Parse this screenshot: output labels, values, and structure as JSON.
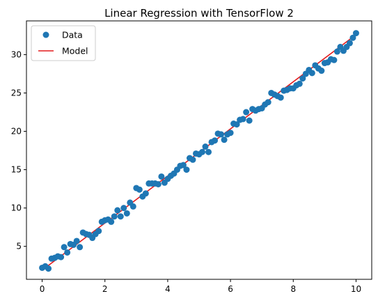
{
  "chart_data": {
    "type": "scatter",
    "title": "Linear Regression with TensorFlow 2",
    "xlabel": "",
    "ylabel": "",
    "xlim": [
      -0.5,
      10.5
    ],
    "ylim": [
      0.7,
      34.4
    ],
    "xticks": [
      0,
      2,
      4,
      6,
      8,
      10
    ],
    "xtick_labels": [
      "0",
      "2",
      "4",
      "6",
      "8",
      "10"
    ],
    "yticks": [
      5,
      10,
      15,
      20,
      25,
      30
    ],
    "ytick_labels": [
      "5",
      "10",
      "15",
      "20",
      "25",
      "30"
    ],
    "grid": false,
    "legend_position": "top-left",
    "series": [
      {
        "name": "Data",
        "kind": "scatter",
        "color": "#1f77b4",
        "x": [
          0.0,
          0.1,
          0.2,
          0.3,
          0.4,
          0.5,
          0.6,
          0.7,
          0.8,
          0.9,
          1.0,
          1.1,
          1.2,
          1.3,
          1.4,
          1.5,
          1.6,
          1.7,
          1.8,
          1.9,
          2.0,
          2.1,
          2.2,
          2.3,
          2.4,
          2.5,
          2.6,
          2.7,
          2.8,
          2.9,
          3.0,
          3.1,
          3.2,
          3.3,
          3.4,
          3.5,
          3.6,
          3.7,
          3.8,
          3.9,
          4.0,
          4.1,
          4.2,
          4.3,
          4.4,
          4.5,
          4.6,
          4.7,
          4.8,
          4.9,
          5.0,
          5.1,
          5.2,
          5.3,
          5.4,
          5.5,
          5.6,
          5.7,
          5.8,
          5.9,
          6.0,
          6.1,
          6.2,
          6.3,
          6.4,
          6.5,
          6.6,
          6.7,
          6.8,
          6.9,
          7.0,
          7.1,
          7.2,
          7.3,
          7.4,
          7.5,
          7.6,
          7.7,
          7.8,
          7.9,
          8.0,
          8.1,
          8.2,
          8.3,
          8.4,
          8.5,
          8.6,
          8.7,
          8.8,
          8.9,
          9.0,
          9.1,
          9.2,
          9.3,
          9.4,
          9.5,
          9.6,
          9.7,
          9.8,
          9.9,
          10.0
        ],
        "y": [
          2.2,
          2.4,
          2.1,
          3.4,
          3.5,
          3.7,
          3.6,
          4.9,
          4.2,
          5.3,
          5.2,
          5.7,
          4.9,
          6.8,
          6.6,
          6.5,
          6.1,
          6.6,
          7.0,
          8.2,
          8.4,
          8.5,
          8.2,
          8.9,
          9.7,
          8.9,
          10.0,
          9.3,
          10.7,
          10.2,
          12.6,
          12.4,
          11.5,
          11.9,
          13.2,
          13.2,
          13.2,
          13.1,
          14.1,
          13.3,
          13.8,
          14.2,
          14.5,
          15.0,
          15.5,
          15.6,
          15.0,
          16.5,
          16.3,
          17.1,
          17.0,
          17.3,
          18.0,
          17.3,
          18.6,
          18.8,
          19.7,
          19.6,
          18.9,
          19.6,
          19.8,
          21.0,
          20.9,
          21.5,
          21.6,
          22.5,
          21.4,
          22.9,
          22.7,
          22.9,
          23.0,
          23.5,
          23.8,
          25.0,
          24.8,
          24.6,
          24.4,
          25.3,
          25.4,
          25.6,
          25.6,
          26.0,
          26.2,
          26.9,
          27.5,
          28.0,
          27.6,
          28.6,
          28.2,
          27.9,
          28.9,
          29.0,
          29.4,
          29.3,
          30.4,
          31.0,
          30.5,
          31.0,
          31.5,
          32.2,
          32.8
        ]
      },
      {
        "name": "Model",
        "kind": "line",
        "color": "#e41a1c",
        "x": [
          0,
          10
        ],
        "y": [
          1.9,
          32.6
        ]
      }
    ]
  }
}
